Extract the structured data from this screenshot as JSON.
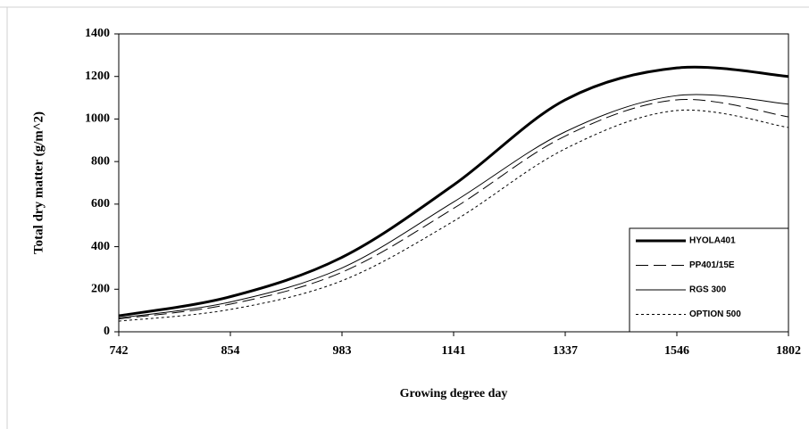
{
  "chart_data": {
    "type": "line",
    "x_label": "Growing degree day",
    "y_label": "Total dry matter (g/m^2)",
    "categories": [
      "742",
      "854",
      "983",
      "1141",
      "1337",
      "1546",
      "1802"
    ],
    "series": [
      {
        "name": "HYOLA401",
        "color": "#000000",
        "style": "solid",
        "linewidth": 3,
        "values": [
          75,
          165,
          350,
          690,
          1090,
          1240,
          1200
        ]
      },
      {
        "name": "PP401/15E",
        "color": "#000000",
        "style": "dashed",
        "linewidth": 1,
        "values": [
          60,
          130,
          280,
          580,
          920,
          1090,
          1010
        ]
      },
      {
        "name": "RGS 300",
        "color": "#000000",
        "style": "solid",
        "linewidth": 1,
        "values": [
          65,
          140,
          300,
          610,
          940,
          1110,
          1070
        ]
      },
      {
        "name": "OPTION 500",
        "color": "#000000",
        "style": "dotted",
        "linewidth": 1,
        "values": [
          50,
          105,
          240,
          520,
          860,
          1040,
          960
        ]
      }
    ],
    "ylim": [
      0,
      1400
    ],
    "yticks": [
      0,
      200,
      400,
      600,
      800,
      1000,
      1200,
      1400
    ],
    "legend": "lower right"
  }
}
